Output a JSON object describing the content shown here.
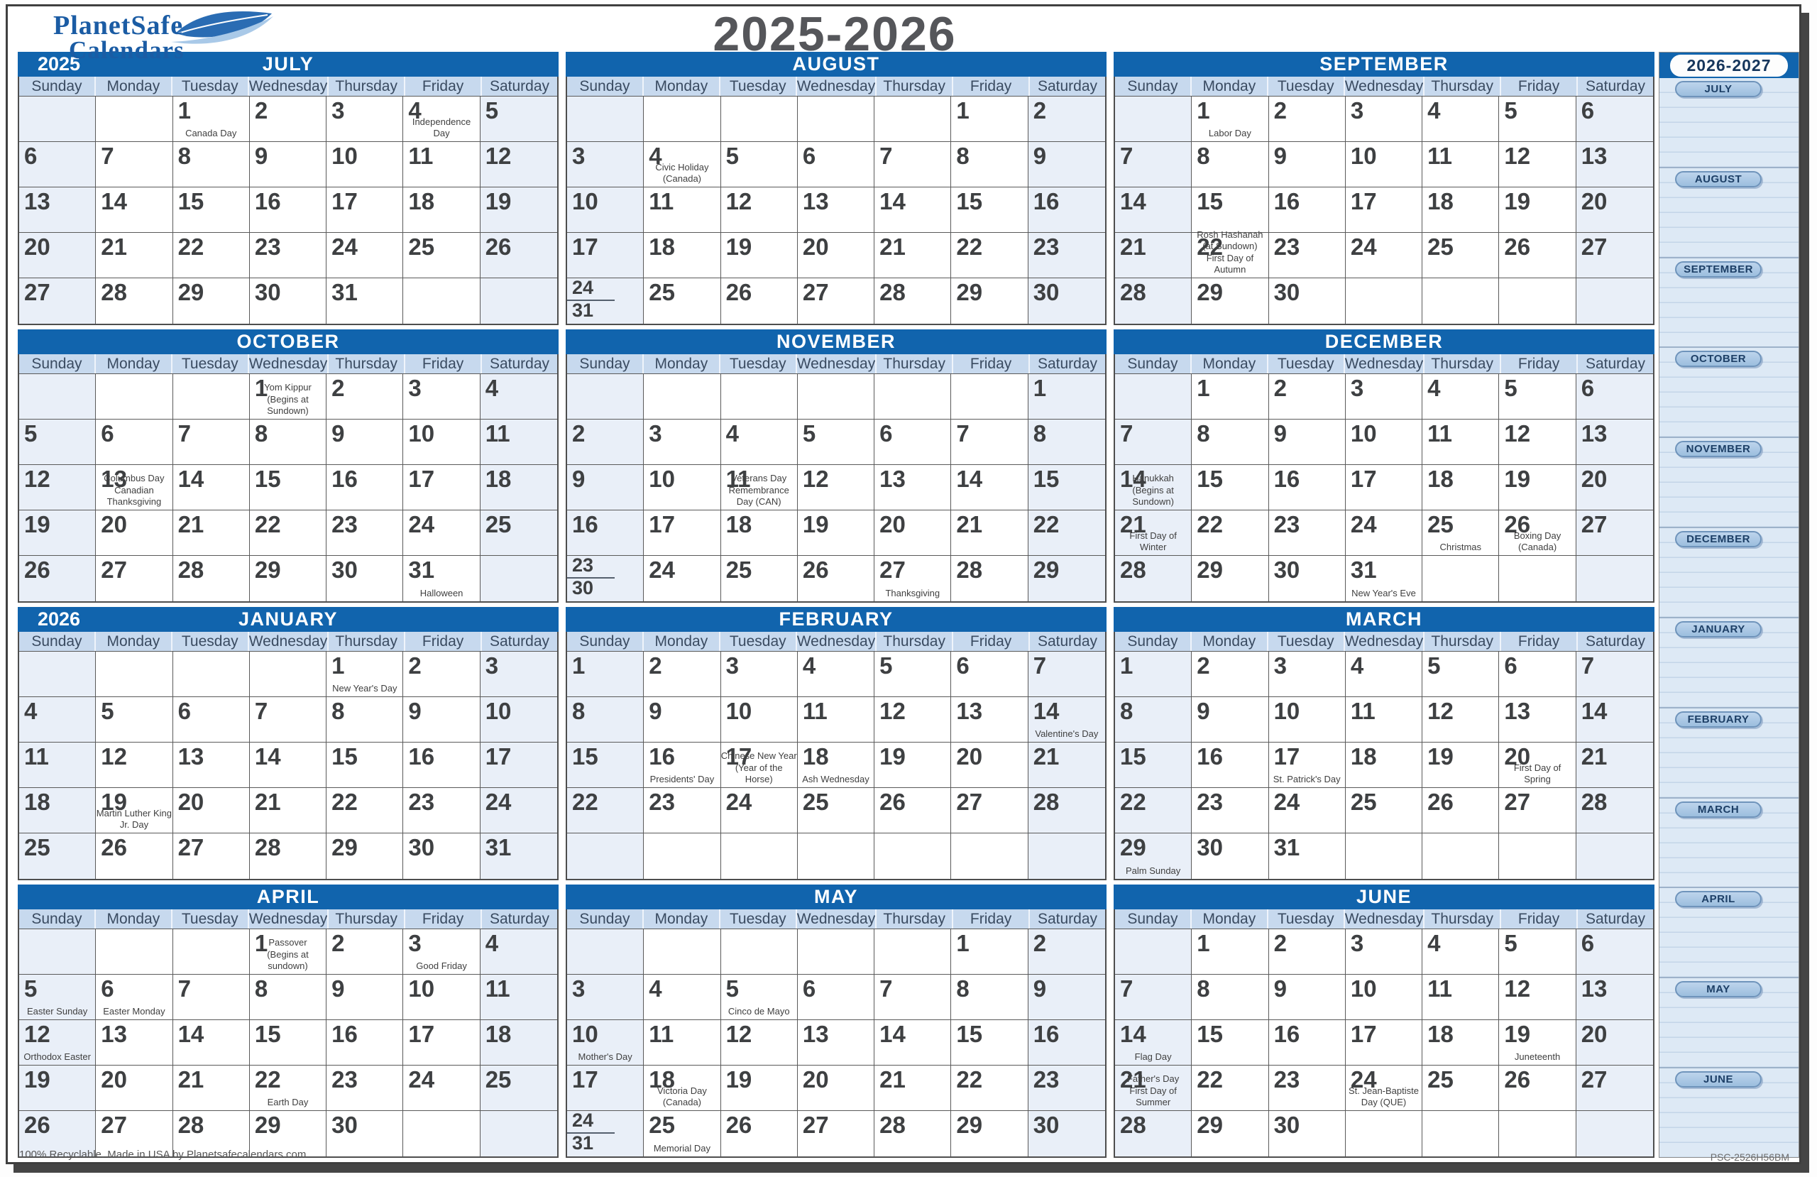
{
  "logo": {
    "line1": "PlanetSafe",
    "line2": "Calendars"
  },
  "title": "2025-2026",
  "weekdays": [
    "Sunday",
    "Monday",
    "Tuesday",
    "Wednesday",
    "Thursday",
    "Friday",
    "Saturday"
  ],
  "colors": {
    "header_blue": "#1164ad",
    "day_header": "#c7d9ee",
    "weekend": "#e9eff8",
    "logo_blue": "#1b5ca4"
  },
  "months": [
    {
      "name": "JULY",
      "year": "2025",
      "cells": [
        "",
        "",
        [
          "1",
          "Canada Day"
        ],
        "2",
        "3",
        [
          "4",
          "Independence Day"
        ],
        "5",
        "6",
        "7",
        "8",
        "9",
        "10",
        "11",
        "12",
        "13",
        "14",
        "15",
        "16",
        "17",
        "18",
        "19",
        "20",
        "21",
        "22",
        "23",
        "24",
        "25",
        "26",
        "27",
        "28",
        "29",
        "30",
        "31",
        "",
        ""
      ]
    },
    {
      "name": "AUGUST",
      "year": "",
      "cells": [
        "",
        "",
        "",
        "",
        "",
        "1",
        "2",
        "3",
        [
          "4",
          "Civic Holiday (Canada)"
        ],
        "5",
        "6",
        "7",
        "8",
        "9",
        "10",
        "11",
        "12",
        "13",
        "14",
        "15",
        "16",
        "17",
        "18",
        "19",
        "20",
        "21",
        "22",
        "23",
        {
          "d": "24",
          "s": "31"
        },
        "25",
        "26",
        "27",
        "28",
        "29",
        "30"
      ]
    },
    {
      "name": "SEPTEMBER",
      "year": "",
      "cells": [
        "",
        [
          "1",
          "Labor Day"
        ],
        "2",
        "3",
        "4",
        "5",
        "6",
        "7",
        "8",
        "9",
        "10",
        "11",
        "12",
        "13",
        "14",
        "15",
        "16",
        "17",
        "18",
        "19",
        "20",
        "21",
        [
          "22",
          "Rosh Hashanah (at Sundown)",
          "First Day of Autumn"
        ],
        "23",
        "24",
        "25",
        "26",
        "27",
        "28",
        "29",
        "30",
        "",
        "",
        "",
        ""
      ]
    },
    {
      "name": "OCTOBER",
      "year": "",
      "cells": [
        "",
        "",
        "",
        [
          "1",
          "Yom Kippur",
          "(Begins at Sundown)"
        ],
        "2",
        "3",
        "4",
        "5",
        "6",
        "7",
        "8",
        "9",
        "10",
        "11",
        "12",
        [
          "13",
          "Columbus Day",
          "Canadian Thanksgiving"
        ],
        "14",
        "15",
        "16",
        "17",
        "18",
        "19",
        "20",
        "21",
        "22",
        "23",
        "24",
        "25",
        "26",
        "27",
        "28",
        "29",
        "30",
        [
          "31",
          "Halloween"
        ],
        ""
      ]
    },
    {
      "name": "NOVEMBER",
      "year": "",
      "cells": [
        "",
        "",
        "",
        "",
        "",
        "",
        "1",
        "2",
        "3",
        "4",
        "5",
        "6",
        "7",
        "8",
        "9",
        "10",
        [
          "11",
          "Veterans Day",
          "Remembrance Day (CAN)"
        ],
        "12",
        "13",
        "14",
        "15",
        "16",
        "17",
        "18",
        "19",
        "20",
        "21",
        "22",
        {
          "d": "23",
          "s": "30"
        },
        "24",
        "25",
        "26",
        [
          "27",
          "Thanksgiving"
        ],
        "28",
        "29"
      ]
    },
    {
      "name": "DECEMBER",
      "year": "",
      "cells": [
        "",
        "1",
        "2",
        "3",
        "4",
        "5",
        "6",
        "7",
        "8",
        "9",
        "10",
        "11",
        "12",
        "13",
        [
          "14",
          "Hanukkah",
          "(Begins at Sundown)"
        ],
        "15",
        "16",
        "17",
        "18",
        "19",
        "20",
        [
          "21",
          "First Day of Winter"
        ],
        "22",
        "23",
        "24",
        [
          "25",
          "Christmas"
        ],
        [
          "26",
          "Boxing Day (Canada)"
        ],
        "27",
        "28",
        "29",
        "30",
        [
          "31",
          "New Year's Eve"
        ],
        "",
        "",
        ""
      ]
    },
    {
      "name": "JANUARY",
      "year": "2026",
      "cells": [
        "",
        "",
        "",
        "",
        [
          "1",
          "New Year's Day"
        ],
        "2",
        "3",
        "4",
        "5",
        "6",
        "7",
        "8",
        "9",
        "10",
        "11",
        "12",
        "13",
        "14",
        "15",
        "16",
        "17",
        "18",
        [
          "19",
          "Martin Luther King Jr. Day"
        ],
        "20",
        "21",
        "22",
        "23",
        "24",
        "25",
        "26",
        "27",
        "28",
        "29",
        "30",
        "31"
      ]
    },
    {
      "name": "FEBRUARY",
      "year": "",
      "cells": [
        "1",
        "2",
        "3",
        "4",
        "5",
        "6",
        "7",
        "8",
        "9",
        "10",
        "11",
        "12",
        "13",
        [
          "14",
          "Valentine's Day"
        ],
        "15",
        [
          "16",
          "Presidents' Day"
        ],
        [
          "17",
          "Chinese New Year",
          "(Year of the Horse)"
        ],
        [
          "18",
          "Ash Wednesday"
        ],
        "19",
        "20",
        "21",
        "22",
        "23",
        "24",
        "25",
        "26",
        "27",
        "28",
        "",
        "",
        "",
        "",
        "",
        "",
        ""
      ]
    },
    {
      "name": "MARCH",
      "year": "",
      "cells": [
        "1",
        "2",
        "3",
        "4",
        "5",
        "6",
        "7",
        "8",
        "9",
        "10",
        "11",
        "12",
        "13",
        "14",
        "15",
        "16",
        [
          "17",
          "St. Patrick's Day"
        ],
        "18",
        "19",
        [
          "20",
          "First Day of Spring"
        ],
        "21",
        "22",
        "23",
        "24",
        "25",
        "26",
        "27",
        "28",
        [
          "29",
          "Palm Sunday"
        ],
        "30",
        "31",
        "",
        "",
        "",
        ""
      ]
    },
    {
      "name": "APRIL",
      "year": "",
      "cells": [
        "",
        "",
        "",
        [
          "1",
          "Passover",
          "(Begins at sundown)"
        ],
        "2",
        [
          "3",
          "Good Friday"
        ],
        "4",
        [
          "5",
          "Easter Sunday"
        ],
        [
          "6",
          "Easter Monday"
        ],
        "7",
        "8",
        "9",
        "10",
        "11",
        [
          "12",
          "Orthodox Easter"
        ],
        "13",
        "14",
        "15",
        "16",
        "17",
        "18",
        "19",
        "20",
        "21",
        [
          "22",
          "Earth Day"
        ],
        "23",
        "24",
        "25",
        "26",
        "27",
        "28",
        "29",
        "30",
        "",
        ""
      ]
    },
    {
      "name": "MAY",
      "year": "",
      "cells": [
        "",
        "",
        "",
        "",
        "",
        "1",
        "2",
        "3",
        "4",
        [
          "5",
          "Cinco de Mayo"
        ],
        "6",
        "7",
        "8",
        "9",
        [
          "10",
          "Mother's Day"
        ],
        "11",
        "12",
        "13",
        "14",
        "15",
        "16",
        "17",
        [
          "18",
          "Victoria Day (Canada)"
        ],
        "19",
        "20",
        "21",
        "22",
        "23",
        {
          "d": "24",
          "s": "31"
        },
        [
          "25",
          "Memorial Day"
        ],
        "26",
        "27",
        "28",
        "29",
        "30"
      ]
    },
    {
      "name": "JUNE",
      "year": "",
      "cells": [
        "",
        "1",
        "2",
        "3",
        "4",
        "5",
        "6",
        "7",
        "8",
        "9",
        "10",
        "11",
        "12",
        "13",
        [
          "14",
          "Flag Day"
        ],
        "15",
        "16",
        "17",
        "18",
        [
          "19",
          "Juneteenth"
        ],
        "20",
        [
          "21",
          "Father's Day",
          "First Day of Summer"
        ],
        "22",
        "23",
        [
          "24",
          "St. Jean-Baptiste Day (QUE)"
        ],
        "25",
        "26",
        "27",
        "28",
        "29",
        "30",
        "",
        "",
        "",
        ""
      ]
    }
  ],
  "sidebar": {
    "header": "2026-2027",
    "months": [
      "JULY",
      "AUGUST",
      "SEPTEMBER",
      "OCTOBER",
      "NOVEMBER",
      "DECEMBER",
      "JANUARY",
      "FEBRUARY",
      "MARCH",
      "APRIL",
      "MAY",
      "JUNE"
    ]
  },
  "footer": {
    "left": "100% Recyclable. Made in USA by Planetsafecalendars.com",
    "right": "PSC-2526H56BM"
  }
}
